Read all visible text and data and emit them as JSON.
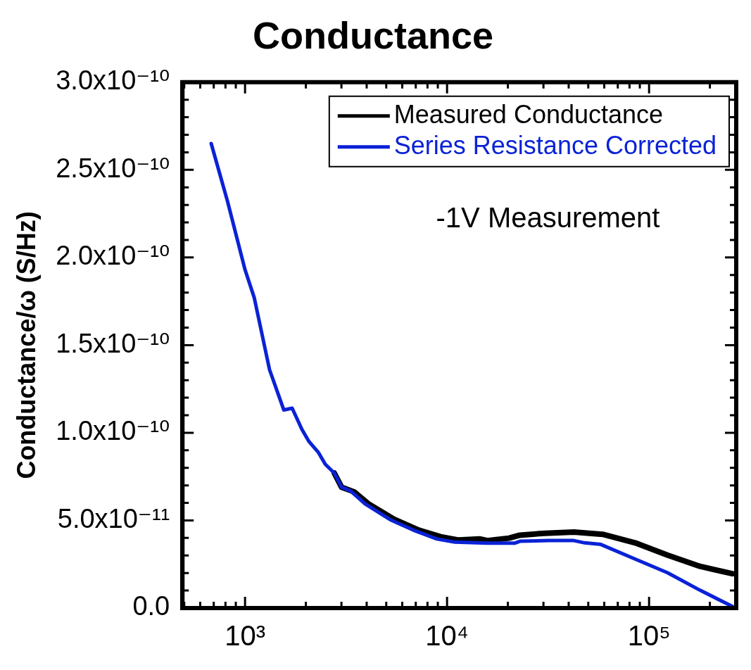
{
  "chart_data": {
    "type": "line",
    "title": "Conductance",
    "ylabel": "Conductance/ω (S/Hz)",
    "log": "x",
    "legend": "top right",
    "line_style": "solid",
    "annotations": [
      "-1V Measurement"
    ],
    "xlim": [
      490,
      270000
    ],
    "xticks": [
      {
        "value": 1000,
        "label": "10³"
      },
      {
        "value": 10000,
        "label": "10⁴"
      },
      {
        "value": 100000,
        "label": "10⁵"
      }
    ],
    "ylim": [
      0,
      3e-10
    ],
    "yticks": [
      {
        "value": 0,
        "label": "0.0"
      },
      {
        "value": 5e-11,
        "label": "5.0x10⁻¹¹"
      },
      {
        "value": 1e-10,
        "label": "1.0x10⁻¹⁰"
      },
      {
        "value": 1.5e-10,
        "label": "1.5x10⁻¹⁰"
      },
      {
        "value": 2e-10,
        "label": "2.0x10⁻¹⁰"
      },
      {
        "value": 2.5e-10,
        "label": "2.5x10⁻¹⁰"
      },
      {
        "value": 3e-10,
        "label": "3.0x10⁻¹⁰"
      }
    ],
    "series": [
      {
        "name": "Measured Conductance",
        "color": "#000000",
        "x": [
          2766,
          3004,
          3467,
          4083,
          5457,
          7261,
          9290,
          11410,
          14590,
          15840,
          20280,
          22920,
          30550,
          42440,
          58880,
          85310,
          123300,
          178600,
          258000
        ],
        "values": [
          7.7e-11,
          6.9e-11,
          6.63e-11,
          5.95e-11,
          5.07e-11,
          4.44e-11,
          4.07e-11,
          3.88e-11,
          3.94e-11,
          3.85e-11,
          3.99e-11,
          4.16e-11,
          4.27e-11,
          4.34e-11,
          4.21e-11,
          3.72e-11,
          3.02e-11,
          2.38e-11,
          1.96e-11
        ]
      },
      {
        "name": "Series Resistance Corrected",
        "color": "#0a22d6",
        "x": [
          680,
          819,
          1000,
          1111,
          1322,
          1556,
          1711,
          1911,
          2073,
          2300,
          2497,
          2766,
          3004,
          3329,
          3924,
          5233,
          6971,
          8913,
          10940,
          15840,
          21580,
          22920,
          31840,
          42440,
          47960,
          57700,
          83550,
          123300,
          178600,
          258000
        ],
        "values": [
          2.65e-10,
          2.32e-10,
          1.93e-10,
          1.77e-10,
          1.36e-10,
          1.13e-10,
          1.14e-10,
          1.02e-10,
          9.5e-11,
          8.9e-11,
          8.2e-11,
          7.7e-11,
          6.9e-11,
          6.68e-11,
          5.95e-11,
          5.04e-11,
          4.4e-11,
          3.94e-11,
          3.76e-11,
          3.7e-11,
          3.7e-11,
          3.81e-11,
          3.85e-11,
          3.85e-11,
          3.72e-11,
          3.63e-11,
          2.84e-11,
          2.02e-11,
          1.02e-11,
          1e-12
        ]
      }
    ]
  }
}
